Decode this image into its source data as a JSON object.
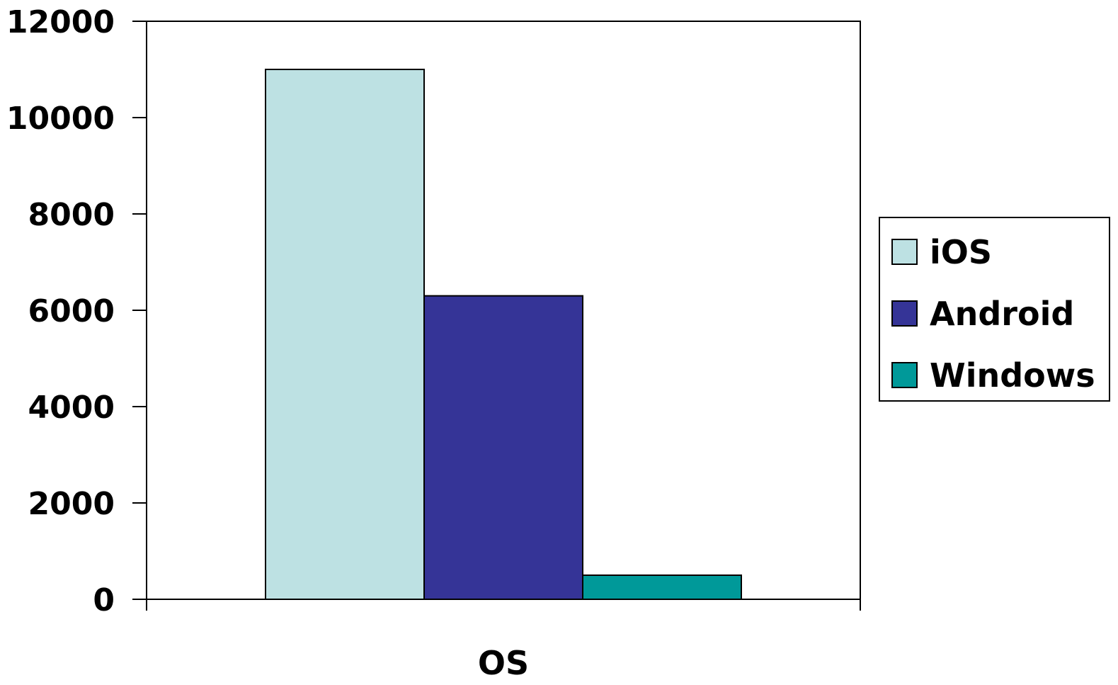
{
  "chart_data": {
    "type": "bar",
    "categories": [
      "OS"
    ],
    "series": [
      {
        "name": "iOS",
        "values": [
          11000
        ],
        "color": "#bde1e3"
      },
      {
        "name": "Android",
        "values": [
          6300
        ],
        "color": "#353497"
      },
      {
        "name": "Windows",
        "values": [
          500
        ],
        "color": "#009999"
      }
    ],
    "title": "",
    "xlabel": "",
    "ylabel": "",
    "ylim": [
      0,
      12000
    ],
    "yticks": [
      0,
      2000,
      4000,
      6000,
      8000,
      10000,
      12000
    ],
    "grid": false,
    "legend_position": "right"
  }
}
